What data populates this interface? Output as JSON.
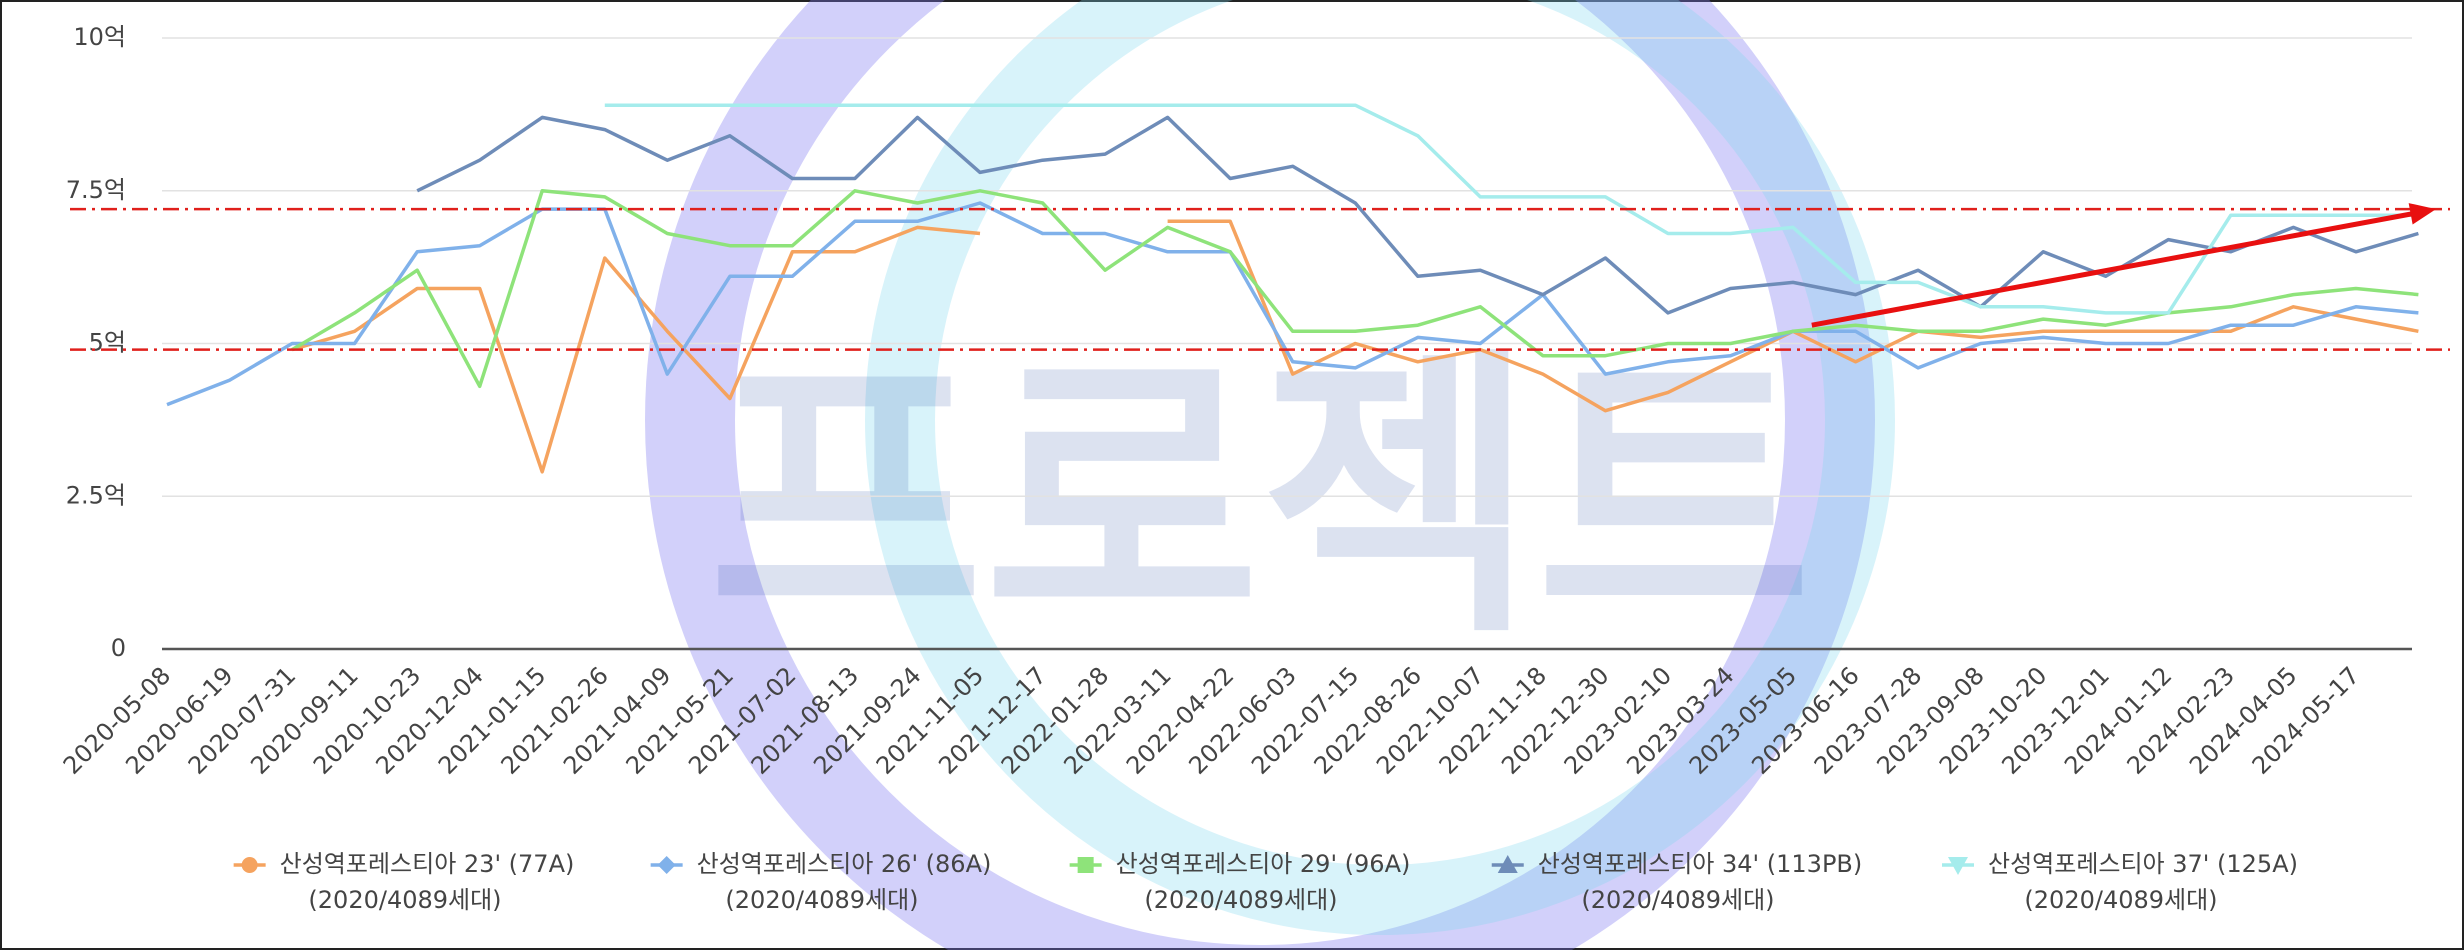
{
  "chart_data": {
    "type": "line",
    "categories": [
      "2020-05-08",
      "2020-06-19",
      "2020-07-31",
      "2020-09-11",
      "2020-10-23",
      "2020-12-04",
      "2021-01-15",
      "2021-02-26",
      "2021-04-09",
      "2021-05-21",
      "2021-07-02",
      "2021-08-13",
      "2021-09-24",
      "2021-11-05",
      "2021-12-17",
      "2022-01-28",
      "2022-03-11",
      "2022-04-22",
      "2022-06-03",
      "2022-07-15",
      "2022-08-26",
      "2022-10-07",
      "2022-11-18",
      "2022-12-30",
      "2023-02-10",
      "2023-03-24",
      "2023-05-05",
      "2023-06-16",
      "2023-07-28",
      "2023-09-08",
      "2023-10-20",
      "2023-12-01",
      "2024-01-12",
      "2024-02-23",
      "2024-04-05",
      "2024-05-17",
      null
    ],
    "ylim": [
      0,
      10
    ],
    "yticks": [
      0,
      {
        "value": 2.5,
        "label": "2.5억"
      },
      {
        "value": 5,
        "label": "5억"
      },
      {
        "value": 7.5,
        "label": "7.5억"
      },
      {
        "value": 10,
        "label": "10억"
      }
    ],
    "grid": true,
    "reference_lines": [
      7.2,
      4.9
    ],
    "trend_arrow": {
      "from": 5.3,
      "to": 7.2
    },
    "watermark": "프로젝트",
    "series": [
      {
        "name": "산성역포레스티아 23' (77A)",
        "legend_sub": "(2020/4089세대)",
        "color": "#f5a35f",
        "marker": "circle",
        "values": [
          null,
          null,
          4.9,
          5.2,
          5.9,
          5.9,
          2.9,
          6.4,
          5.2,
          4.1,
          6.5,
          6.5,
          6.9,
          6.8,
          null,
          null,
          7.0,
          7.0,
          4.5,
          5.0,
          4.7,
          4.9,
          4.5,
          3.9,
          4.2,
          4.7,
          5.2,
          4.7,
          5.2,
          5.1,
          5.2,
          5.2,
          5.2,
          5.2,
          5.6,
          5.4,
          5.2
        ]
      },
      {
        "name": "산성역포레스티아 26' (86A)",
        "legend_sub": "(2020/4089세대)",
        "color": "#80b1ea",
        "marker": "diamond",
        "values": [
          4.0,
          4.4,
          5.0,
          5.0,
          6.5,
          6.6,
          7.2,
          7.2,
          4.5,
          6.1,
          6.1,
          7.0,
          7.0,
          7.3,
          6.8,
          6.8,
          6.5,
          6.5,
          4.7,
          4.6,
          5.1,
          5.0,
          5.8,
          4.5,
          4.7,
          4.8,
          5.2,
          5.2,
          4.6,
          5.0,
          5.1,
          5.0,
          5.0,
          5.3,
          5.3,
          5.6,
          5.5
        ]
      },
      {
        "name": "산성역포레스티아 29' (96A)",
        "legend_sub": "(2020/4089세대)",
        "color": "#8ee37a",
        "marker": "square",
        "values": [
          null,
          null,
          4.9,
          5.5,
          6.2,
          4.3,
          7.5,
          7.4,
          6.8,
          6.6,
          6.6,
          7.5,
          7.3,
          7.5,
          7.3,
          6.2,
          6.9,
          6.5,
          5.2,
          5.2,
          5.3,
          5.6,
          4.8,
          4.8,
          5.0,
          5.0,
          5.2,
          5.3,
          5.2,
          5.2,
          5.4,
          5.3,
          5.5,
          5.6,
          5.8,
          5.9,
          5.8
        ]
      },
      {
        "name": "산성역포레스티아 34' (113PB)",
        "legend_sub": "(2020/4089세대)",
        "color": "#6e8cb8",
        "marker": "triangle",
        "values": [
          null,
          null,
          null,
          null,
          7.5,
          8.0,
          8.7,
          8.5,
          8.0,
          8.4,
          7.7,
          7.7,
          8.7,
          7.8,
          8.0,
          8.1,
          8.7,
          7.7,
          7.9,
          7.3,
          6.1,
          6.2,
          5.8,
          6.4,
          5.5,
          5.9,
          6.0,
          5.8,
          6.2,
          5.6,
          6.5,
          6.1,
          6.7,
          6.5,
          6.9,
          6.5,
          6.8
        ]
      },
      {
        "name": "산성역포레스티아 37' (125A)",
        "legend_sub": "(2020/4089세대)",
        "color": "#a5ecec",
        "marker": "triangle-down",
        "values": [
          null,
          null,
          null,
          null,
          null,
          null,
          null,
          8.9,
          8.9,
          8.9,
          8.9,
          8.9,
          8.9,
          8.9,
          8.9,
          8.9,
          8.9,
          8.9,
          8.9,
          8.9,
          8.4,
          7.4,
          7.4,
          7.4,
          6.8,
          6.8,
          6.9,
          6.0,
          6.0,
          5.6,
          5.6,
          5.5,
          5.5,
          7.1,
          7.1,
          7.1,
          7.1
        ]
      }
    ]
  }
}
